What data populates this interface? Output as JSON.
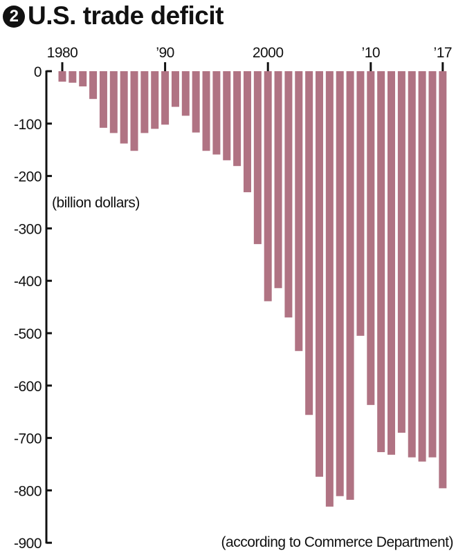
{
  "chart_data": {
    "type": "bar",
    "title": "U.S. trade deficit",
    "title_number": "2",
    "unit_label": "(billion dollars)",
    "source": "(according to Commerce Department)",
    "bar_color": "#b07383",
    "x_tick_labels": [
      {
        "year": 1980,
        "label": "1980"
      },
      {
        "year": 1990,
        "label": "’90"
      },
      {
        "year": 2000,
        "label": "2000"
      },
      {
        "year": 2010,
        "label": "’10"
      },
      {
        "year": 2017,
        "label": "’17"
      }
    ],
    "y_ticks": [
      0,
      -100,
      -200,
      -300,
      -400,
      -500,
      -600,
      -700,
      -800,
      -900
    ],
    "ylim": [
      -900,
      0
    ],
    "categories": [
      1980,
      1981,
      1982,
      1983,
      1984,
      1985,
      1986,
      1987,
      1988,
      1989,
      1990,
      1991,
      1992,
      1993,
      1994,
      1995,
      1996,
      1997,
      1998,
      1999,
      2000,
      2001,
      2002,
      2003,
      2004,
      2005,
      2006,
      2007,
      2008,
      2009,
      2010,
      2011,
      2012,
      2013,
      2014,
      2015,
      2016,
      2017
    ],
    "values": [
      -20,
      -22,
      -29,
      -53,
      -108,
      -118,
      -138,
      -152,
      -118,
      -110,
      -102,
      -68,
      -85,
      -117,
      -152,
      -159,
      -170,
      -181,
      -231,
      -330,
      -439,
      -414,
      -470,
      -534,
      -656,
      -774,
      -831,
      -811,
      -818,
      -505,
      -637,
      -727,
      -732,
      -690,
      -737,
      -745,
      -737,
      -796
    ]
  }
}
